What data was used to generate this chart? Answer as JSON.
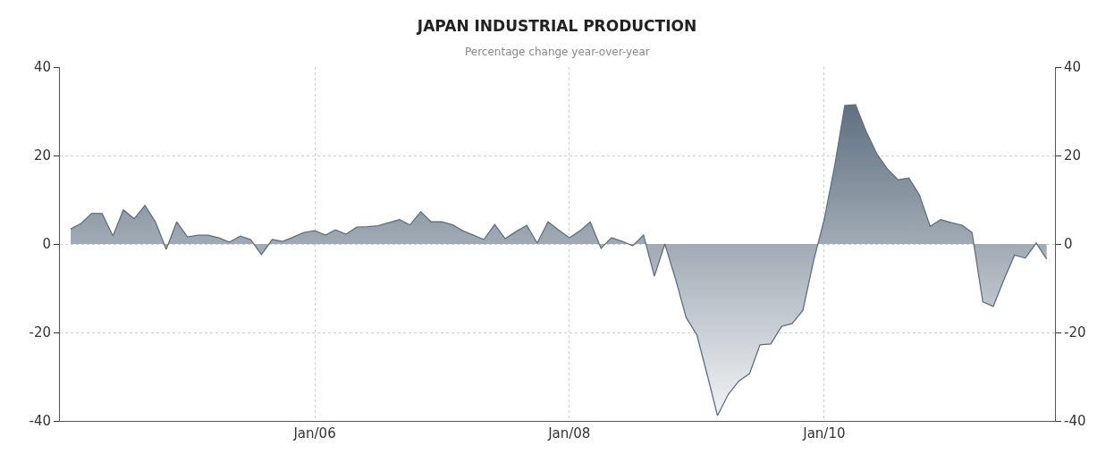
{
  "chart_data": {
    "type": "area",
    "title": "JAPAN INDUSTRIAL PRODUCTION",
    "subtitle": "Percentage change year-over-year",
    "x": [
      "2004-02",
      "2004-03",
      "2004-04",
      "2004-05",
      "2004-06",
      "2004-07",
      "2004-08",
      "2004-09",
      "2004-10",
      "2004-11",
      "2004-12",
      "2005-01",
      "2005-02",
      "2005-03",
      "2005-04",
      "2005-05",
      "2005-06",
      "2005-07",
      "2005-08",
      "2005-09",
      "2005-10",
      "2005-11",
      "2005-12",
      "2006-01",
      "2006-02",
      "2006-03",
      "2006-04",
      "2006-05",
      "2006-06",
      "2006-07",
      "2006-08",
      "2006-09",
      "2006-10",
      "2006-11",
      "2006-12",
      "2007-01",
      "2007-02",
      "2007-03",
      "2007-04",
      "2007-05",
      "2007-06",
      "2007-07",
      "2007-08",
      "2007-09",
      "2007-10",
      "2007-11",
      "2007-12",
      "2008-01",
      "2008-02",
      "2008-03",
      "2008-04",
      "2008-05",
      "2008-06",
      "2008-07",
      "2008-08",
      "2008-09",
      "2008-10",
      "2008-11",
      "2008-12",
      "2009-01",
      "2009-02",
      "2009-03",
      "2009-04",
      "2009-05",
      "2009-06",
      "2009-07",
      "2009-08",
      "2009-09",
      "2009-10",
      "2009-11",
      "2009-12",
      "2010-01",
      "2010-02",
      "2010-03",
      "2010-04",
      "2010-05",
      "2010-06",
      "2010-07",
      "2010-08",
      "2010-09",
      "2010-10",
      "2010-11",
      "2010-12",
      "2011-01",
      "2011-02",
      "2011-03",
      "2011-04",
      "2011-05",
      "2011-06",
      "2011-07",
      "2011-08",
      "2011-09",
      "2011-10"
    ],
    "series": [
      {
        "color": "#5f7080",
        "values": [
          3.4,
          4.6,
          6.9,
          6.9,
          1.8,
          7.7,
          5.7,
          8.7,
          5,
          -1.2,
          5,
          1.6,
          2,
          2,
          1.4,
          0.4,
          1.8,
          1,
          -2.4,
          1,
          0.6,
          1.6,
          2.6,
          3,
          2,
          3.2,
          2.2,
          3.8,
          3.9,
          4.1,
          4.8,
          5.5,
          4.3,
          7.3,
          5,
          5,
          4.3,
          3,
          2,
          1,
          4.4,
          1.2,
          2.8,
          4.2,
          0.2,
          5,
          3.2,
          1.4,
          3,
          5,
          -1,
          1.4,
          0.6,
          -0.4,
          2,
          -7.3,
          0,
          -8,
          -16.6,
          -20.6,
          -30,
          -38.8,
          -34,
          -31,
          -29.3,
          -22.8,
          -22.6,
          -18.6,
          -18,
          -15,
          -4,
          5.5,
          18,
          31.3,
          31.5,
          25.5,
          20.4,
          17,
          14.5,
          14.9,
          11.1,
          4,
          5.5,
          4.8,
          4.2,
          2.6,
          -13.1,
          -14.1,
          -8,
          -2.5,
          -3.2,
          0.2,
          -3.4
        ]
      }
    ],
    "xlim": [
      "2004-01-01",
      "2011-10-25"
    ],
    "xticks": [
      {
        "value": "2006-01",
        "label": "Jan/06"
      },
      {
        "value": "2008-01",
        "label": "Jan/08"
      },
      {
        "value": "2010-01",
        "label": "Jan/10"
      }
    ],
    "ylim": [
      -40,
      40
    ],
    "yticks": [
      -40,
      -20,
      0,
      20,
      40
    ],
    "y2lim": [
      -40,
      40
    ],
    "y2ticks": [
      -40,
      -20,
      0,
      20,
      40
    ],
    "grid": true
  }
}
